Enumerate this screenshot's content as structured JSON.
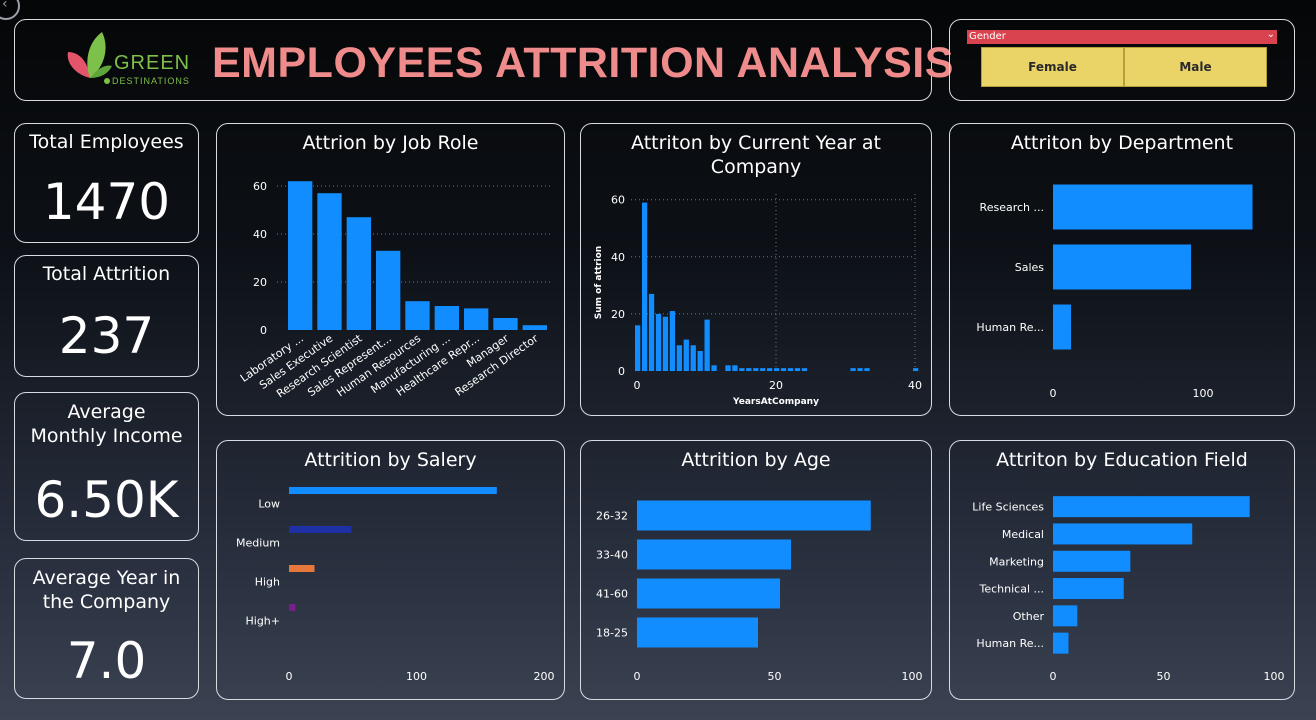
{
  "header": {
    "title": "EMPLOYEES ATTRITION ANALYSIS",
    "logo_text": "GREEN",
    "logo_subtext": "DESTINATIONS"
  },
  "slicer": {
    "label": "Gender",
    "options": [
      "Female",
      "Male"
    ]
  },
  "kpis": {
    "total_employees": {
      "label": "Total Employees",
      "value": "1470"
    },
    "total_attrition": {
      "label": "Total Attrition",
      "value": "237"
    },
    "avg_income": {
      "label": "Average Monthly Income",
      "value": "6.50K"
    },
    "avg_year": {
      "label": "Average Year in the Company",
      "value": "7.0"
    }
  },
  "colors": {
    "bar": "#118dff",
    "medium": "#1f2fa6",
    "high": "#e8773b",
    "highplus": "#7a1e8c",
    "accent": "#ef8b8b"
  },
  "chart_data": [
    {
      "id": "job_role",
      "type": "bar",
      "title": "Attrion by Job Role",
      "categories": [
        "Laboratory ...",
        "Sales Executive",
        "Research Scientist",
        "Sales Represent...",
        "Human Resources",
        "Manufacturing ...",
        "Healthcare Repr...",
        "Manager",
        "Research Director"
      ],
      "values": [
        62,
        57,
        47,
        33,
        12,
        10,
        9,
        5,
        2
      ],
      "ylim": [
        0,
        65
      ],
      "yticks": [
        0,
        20,
        40,
        60
      ],
      "grid": true
    },
    {
      "id": "years_at_company",
      "type": "bar",
      "title": "Attriton by Current Year at Company",
      "xlabel": "YearsAtCompany",
      "ylabel": "Sum of attrion",
      "x": [
        0,
        1,
        2,
        3,
        4,
        5,
        6,
        7,
        8,
        9,
        10,
        11,
        12,
        13,
        14,
        15,
        16,
        17,
        18,
        19,
        20,
        21,
        22,
        23,
        24,
        31,
        32,
        33,
        40
      ],
      "values": [
        16,
        59,
        27,
        20,
        19,
        21,
        9,
        11,
        9,
        7,
        18,
        2,
        0,
        2,
        2,
        1,
        1,
        1,
        1,
        1,
        1,
        1,
        1,
        1,
        1,
        1,
        1,
        1,
        1
      ],
      "xlim": [
        0,
        40
      ],
      "xticks": [
        0,
        20,
        40
      ],
      "ylim": [
        0,
        62
      ],
      "yticks": [
        0,
        20,
        40,
        60
      ],
      "grid": true
    },
    {
      "id": "department",
      "type": "bar",
      "orientation": "horizontal",
      "title": "Attriton by Department",
      "categories": [
        "Research ...",
        "Sales",
        "Human Re..."
      ],
      "values": [
        133,
        92,
        12
      ],
      "xlim": [
        0,
        140
      ],
      "xticks": [
        0,
        100
      ]
    },
    {
      "id": "salary",
      "type": "bar",
      "orientation": "horizontal",
      "title": "Attrition by Salery",
      "categories": [
        "Low",
        "Medium",
        "High",
        "High+"
      ],
      "values": [
        163,
        49,
        20,
        5
      ],
      "xlim": [
        0,
        200
      ],
      "xticks": [
        0,
        100,
        200
      ]
    },
    {
      "id": "age",
      "type": "bar",
      "orientation": "horizontal",
      "title": "Attrition by Age",
      "categories": [
        "26-32",
        "33-40",
        "41-60",
        "18-25"
      ],
      "values": [
        85,
        56,
        52,
        44
      ],
      "xlim": [
        0,
        100
      ],
      "xticks": [
        0,
        50,
        100
      ]
    },
    {
      "id": "education",
      "type": "bar",
      "orientation": "horizontal",
      "title": "Attriton by Education Field",
      "categories": [
        "Life Sciences",
        "Medical",
        "Marketing",
        "Technical ...",
        "Other",
        "Human Re..."
      ],
      "values": [
        89,
        63,
        35,
        32,
        11,
        7
      ],
      "xlim": [
        0,
        100
      ],
      "xticks": [
        0,
        50,
        100
      ]
    }
  ]
}
